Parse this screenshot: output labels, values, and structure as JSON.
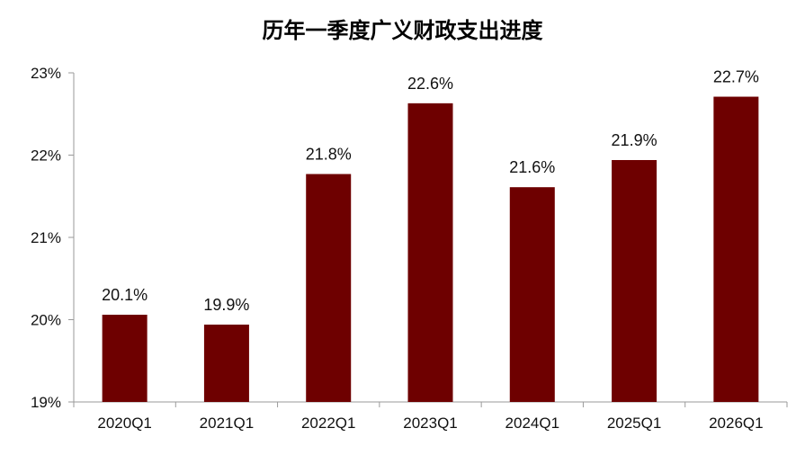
{
  "chart_data": {
    "type": "bar",
    "title": "历年一季度广义财政支出进度",
    "xlabel": "",
    "ylabel": "",
    "categories": [
      "2020Q1",
      "2021Q1",
      "2022Q1",
      "2023Q1",
      "2024Q1",
      "2025Q1",
      "2026Q1"
    ],
    "values": [
      20.06,
      19.94,
      21.77,
      22.63,
      21.61,
      21.94,
      22.71
    ],
    "data_labels": [
      "20.1%",
      "19.9%",
      "21.8%",
      "22.6%",
      "21.6%",
      "21.9%",
      "22.7%"
    ],
    "ylim": [
      19,
      23
    ],
    "yticks": [
      19,
      20,
      21,
      22,
      23
    ],
    "ytick_labels": [
      "19%",
      "20%",
      "21%",
      "22%",
      "23%"
    ],
    "grid": false,
    "legend": "none",
    "bar_color": "#6E0000"
  }
}
